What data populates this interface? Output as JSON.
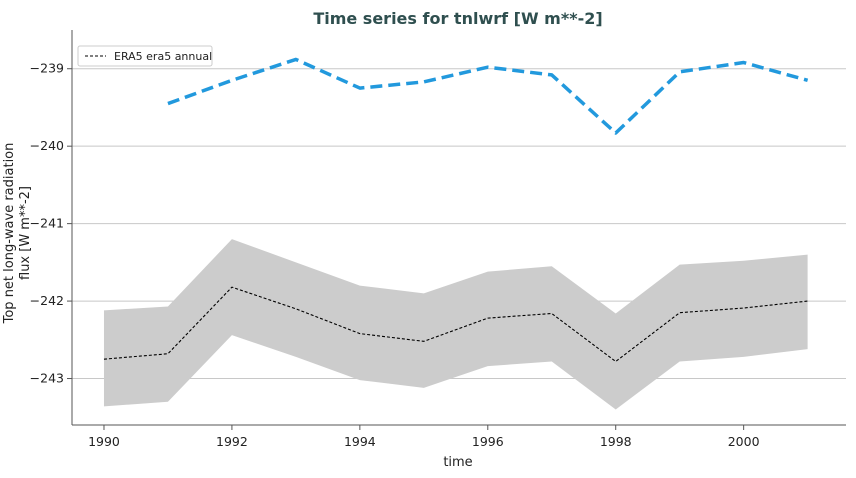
{
  "chart_data": {
    "type": "line",
    "title": "Time series for tnlwrf [W m**-2]",
    "xlabel": "time",
    "ylabel_lines": [
      "Top net long-wave radiation",
      "flux [W m**-2]"
    ],
    "xlim": [
      1989.5,
      2001.6
    ],
    "ylim": [
      -243.6,
      -238.5
    ],
    "x_ticks": [
      1990,
      1992,
      1994,
      1996,
      1998,
      2000
    ],
    "y_ticks": [
      -243,
      -242,
      -241,
      -240,
      -239
    ],
    "y_tick_labels": [
      "−243",
      "−242",
      "−241",
      "−240",
      "−239"
    ],
    "grid": "horizontal",
    "legend": {
      "position": "top-left",
      "entries": [
        "ERA5 era5 annual"
      ]
    },
    "x": [
      1990,
      1991,
      1992,
      1993,
      1994,
      1995,
      1996,
      1997,
      1998,
      1999,
      2000,
      2001
    ],
    "series": [
      {
        "name": "ERA5 era5 annual",
        "color": "#000000",
        "style": "dashed-thin",
        "values": [
          -242.75,
          -242.68,
          -241.82,
          -242.1,
          -242.42,
          -242.52,
          -242.22,
          -242.16,
          -242.78,
          -242.15,
          -242.09,
          -242.0
        ]
      },
      {
        "color": "#2299dd",
        "style": "dashed-thick",
        "x": [
          1991,
          1992,
          1993,
          1994,
          1995,
          1996,
          1997,
          1998,
          1999,
          2000,
          2001
        ],
        "values": [
          -239.45,
          -239.15,
          -238.88,
          -239.25,
          -239.17,
          -238.98,
          -239.08,
          -239.83,
          -239.04,
          -238.92,
          -239.15
        ]
      }
    ],
    "band": {
      "color": "#cccccc",
      "upper": [
        -242.12,
        -242.07,
        -241.2,
        -241.5,
        -241.8,
        -241.9,
        -241.62,
        -241.55,
        -242.16,
        -241.53,
        -241.48,
        -241.4
      ],
      "lower": [
        -243.36,
        -243.3,
        -242.44,
        -242.72,
        -243.02,
        -243.12,
        -242.84,
        -242.78,
        -243.4,
        -242.78,
        -242.72,
        -242.62
      ]
    }
  }
}
